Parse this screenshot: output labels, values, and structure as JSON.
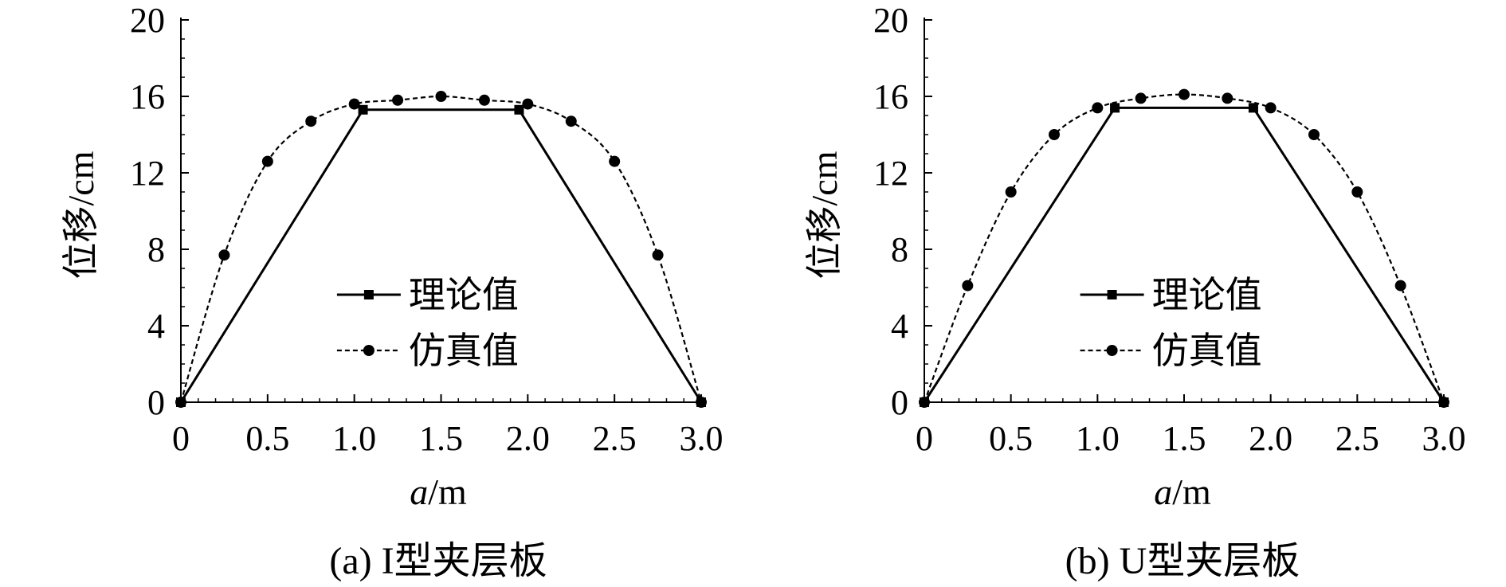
{
  "chart_data": [
    {
      "type": "line",
      "caption": "(a) I型夹层板",
      "xlabel_italic": "a",
      "xlabel_unit": "/m",
      "ylabel": "位移/cm",
      "xlim": [
        0,
        3.0
      ],
      "ylim": [
        0,
        20
      ],
      "xticks": [
        "0",
        "0.5",
        "1.0",
        "1.5",
        "2.0",
        "2.5",
        "3.0"
      ],
      "yticks": [
        "0",
        "4",
        "8",
        "12",
        "16",
        "20"
      ],
      "legend_position": "center-right",
      "series": [
        {
          "name": "理论值",
          "marker": "square",
          "line": "solid",
          "x": [
            0,
            1.05,
            1.95,
            3.0
          ],
          "y": [
            0,
            15.3,
            15.3,
            0
          ]
        },
        {
          "name": "仿真值",
          "marker": "circle",
          "line": "dashed",
          "x": [
            0,
            0.25,
            0.5,
            0.75,
            1.0,
            1.25,
            1.5,
            1.75,
            2.0,
            2.25,
            2.5,
            2.75,
            3.0
          ],
          "y": [
            0,
            7.7,
            12.6,
            14.7,
            15.6,
            15.8,
            16.0,
            15.8,
            15.6,
            14.7,
            12.6,
            7.7,
            0
          ]
        }
      ]
    },
    {
      "type": "line",
      "caption": "(b) U型夹层板",
      "xlabel_italic": "a",
      "xlabel_unit": "/m",
      "ylabel": "位移/cm",
      "xlim": [
        0,
        3.0
      ],
      "ylim": [
        0,
        20
      ],
      "xticks": [
        "0",
        "0.5",
        "1.0",
        "1.5",
        "2.0",
        "2.5",
        "3.0"
      ],
      "yticks": [
        "0",
        "4",
        "8",
        "12",
        "16",
        "20"
      ],
      "legend_position": "center-right",
      "series": [
        {
          "name": "理论值",
          "marker": "square",
          "line": "solid",
          "x": [
            0,
            1.1,
            1.9,
            3.0
          ],
          "y": [
            0,
            15.4,
            15.4,
            0
          ]
        },
        {
          "name": "仿真值",
          "marker": "circle",
          "line": "dashed",
          "x": [
            0,
            0.25,
            0.5,
            0.75,
            1.0,
            1.25,
            1.5,
            1.75,
            2.0,
            2.25,
            2.5,
            2.75,
            3.0
          ],
          "y": [
            0,
            6.1,
            11.0,
            14.0,
            15.4,
            15.9,
            16.1,
            15.9,
            15.4,
            14.0,
            11.0,
            6.1,
            0
          ]
        }
      ]
    }
  ]
}
